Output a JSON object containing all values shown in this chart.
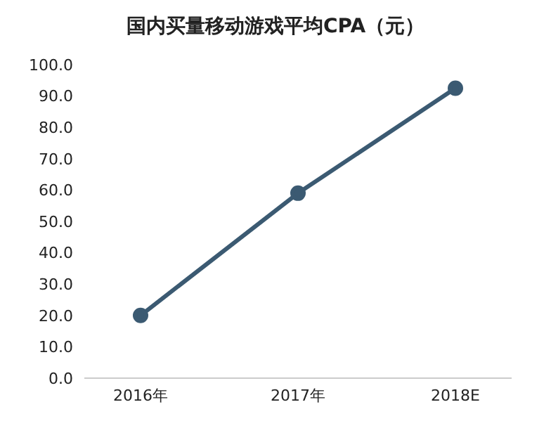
{
  "chart_data": {
    "type": "line",
    "title": "国内买量移动游戏平均CPA（元）",
    "categories": [
      "2016年",
      "2017年",
      "2018E"
    ],
    "series": [
      {
        "color": "#3b5a72",
        "values": [
          20,
          59,
          92.5
        ]
      }
    ],
    "ylim": [
      0,
      100
    ],
    "yticks": [
      {
        "value": 0,
        "label": "0.0"
      },
      {
        "value": 10,
        "label": "10.0"
      },
      {
        "value": 20,
        "label": "20.0"
      },
      {
        "value": 30,
        "label": "30.0"
      },
      {
        "value": 40,
        "label": "40.0"
      },
      {
        "value": 50,
        "label": "50.0"
      },
      {
        "value": 60,
        "label": "60.0"
      },
      {
        "value": 70,
        "label": "70.0"
      },
      {
        "value": 80,
        "label": "80.0"
      },
      {
        "value": 90,
        "label": "90.0"
      },
      {
        "value": 100,
        "label": "100.0"
      }
    ],
    "grid": false,
    "marker": "circle",
    "line_style": "solid"
  }
}
